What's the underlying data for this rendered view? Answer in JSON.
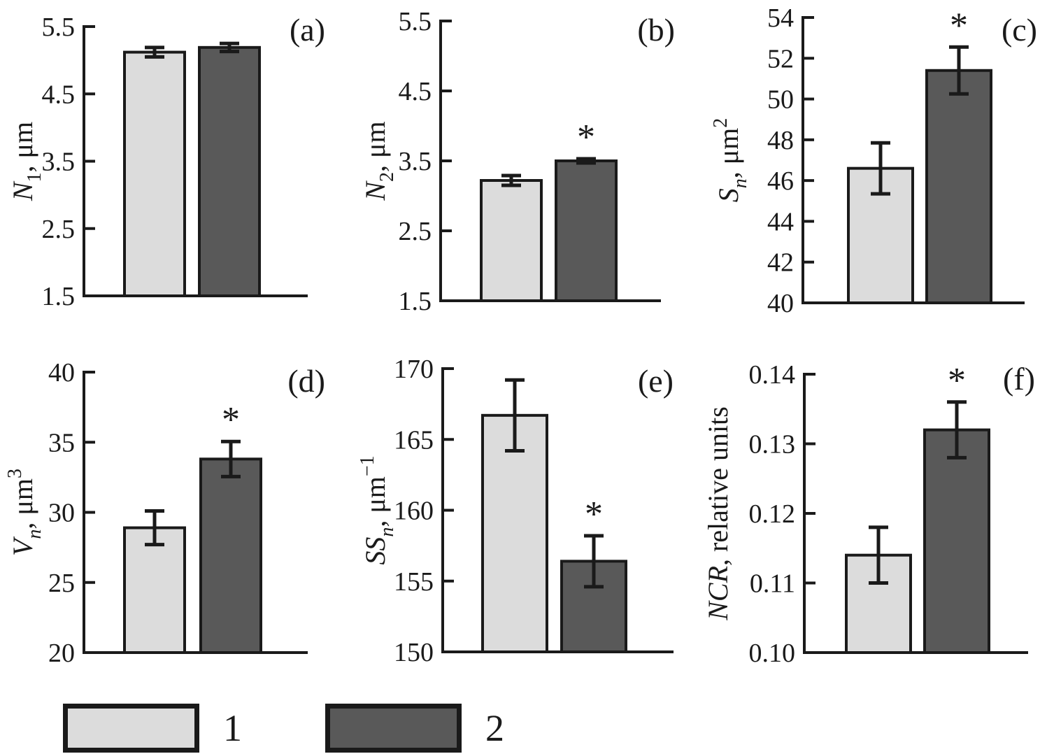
{
  "colors": {
    "group1_fill": "#dcdcdc",
    "group2_fill": "#595959",
    "stroke": "#1a1a1a"
  },
  "legend": {
    "items": [
      {
        "label": "1",
        "series": "group1"
      },
      {
        "label": "2",
        "series": "group2"
      }
    ]
  },
  "chart_data": [
    {
      "type": "bar",
      "panel_label": "(a)",
      "ylabel": "N₁, μm",
      "ylabel_parts": [
        {
          "style": "i",
          "text": "N"
        },
        {
          "style": "sub",
          "text": "1"
        },
        {
          "style": "n",
          "text": ", μm"
        }
      ],
      "ylim": [
        1.5,
        5.5
      ],
      "yticks": [
        1.5,
        2.5,
        3.5,
        4.5,
        5.5
      ],
      "ytick_labels": [
        "1.5",
        "2.5",
        "3.5",
        "4.5",
        "5.5"
      ],
      "categories": [
        "1",
        "2"
      ],
      "values": [
        5.12,
        5.19
      ],
      "errors": [
        0.07,
        0.06
      ],
      "significant": [
        false,
        false
      ],
      "grid": false
    },
    {
      "type": "bar",
      "panel_label": "(b)",
      "ylabel": "N₂, μm",
      "ylabel_parts": [
        {
          "style": "i",
          "text": "N"
        },
        {
          "style": "sub",
          "text": "2"
        },
        {
          "style": "n",
          "text": ", μm"
        }
      ],
      "ylim": [
        1.5,
        5.5
      ],
      "yticks": [
        1.5,
        2.5,
        3.5,
        4.5,
        5.5
      ],
      "ytick_labels": [
        "1.5",
        "2.5",
        "3.5",
        "4.5",
        "5.5"
      ],
      "categories": [
        "1",
        "2"
      ],
      "values": [
        3.22,
        3.5
      ],
      "errors": [
        0.07,
        0.03
      ],
      "significant": [
        false,
        true
      ],
      "grid": false
    },
    {
      "type": "bar",
      "panel_label": "(c)",
      "ylabel": "Sₙ, μm²",
      "ylabel_parts": [
        {
          "style": "i",
          "text": "S"
        },
        {
          "style": "subi",
          "text": "n"
        },
        {
          "style": "n",
          "text": ", μm"
        },
        {
          "style": "sup",
          "text": "2"
        }
      ],
      "ylim": [
        40,
        54
      ],
      "yticks": [
        40,
        42,
        44,
        46,
        48,
        50,
        52,
        54
      ],
      "ytick_labels": [
        "40",
        "42",
        "44",
        "46",
        "48",
        "50",
        "52",
        "54"
      ],
      "categories": [
        "1",
        "2"
      ],
      "values": [
        46.6,
        51.4
      ],
      "errors": [
        1.25,
        1.15
      ],
      "significant": [
        false,
        true
      ],
      "grid": false
    },
    {
      "type": "bar",
      "panel_label": "(d)",
      "ylabel": "Vₙ, μm³",
      "ylabel_parts": [
        {
          "style": "i",
          "text": "V"
        },
        {
          "style": "subi",
          "text": "n"
        },
        {
          "style": "n",
          "text": ", μm"
        },
        {
          "style": "sup",
          "text": "3"
        }
      ],
      "ylim": [
        20,
        40
      ],
      "yticks": [
        20,
        25,
        30,
        35,
        40
      ],
      "ytick_labels": [
        "20",
        "25",
        "30",
        "35",
        "40"
      ],
      "categories": [
        "1",
        "2"
      ],
      "values": [
        28.9,
        33.8
      ],
      "errors": [
        1.2,
        1.25
      ],
      "significant": [
        false,
        true
      ],
      "grid": false
    },
    {
      "type": "bar",
      "panel_label": "(e)",
      "ylabel": "SSₙ, μm⁻¹",
      "ylabel_parts": [
        {
          "style": "i",
          "text": "SS"
        },
        {
          "style": "subi",
          "text": "n"
        },
        {
          "style": "n",
          "text": ", μm"
        },
        {
          "style": "sup",
          "text": "−1"
        }
      ],
      "ylim": [
        150,
        170
      ],
      "yticks": [
        150,
        155,
        160,
        165,
        170
      ],
      "ytick_labels": [
        "150",
        "155",
        "160",
        "165",
        "170"
      ],
      "categories": [
        "1",
        "2"
      ],
      "values": [
        166.7,
        156.4
      ],
      "errors": [
        2.5,
        1.8
      ],
      "significant": [
        false,
        true
      ],
      "grid": false
    },
    {
      "type": "bar",
      "panel_label": "(f)",
      "ylabel": "NCR, relative units",
      "ylabel_parts": [
        {
          "style": "i",
          "text": "NCR"
        },
        {
          "style": "n",
          "text": ", relative units"
        }
      ],
      "ylim": [
        0.1,
        0.14
      ],
      "yticks": [
        0.1,
        0.11,
        0.12,
        0.13,
        0.14
      ],
      "ytick_labels": [
        "0.10",
        "0.11",
        "0.12",
        "0.13",
        "0.14"
      ],
      "categories": [
        "1",
        "2"
      ],
      "values": [
        0.114,
        0.132
      ],
      "errors": [
        0.004,
        0.004
      ],
      "significant": [
        false,
        true
      ],
      "grid": false
    }
  ]
}
